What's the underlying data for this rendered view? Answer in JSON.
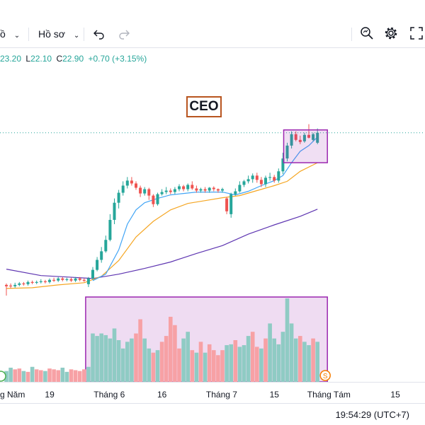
{
  "toolbar": {
    "indicators_label": "ồ",
    "profile_label": "Hồ sơ"
  },
  "ohlc": {
    "high": "23.20",
    "low_label": "L",
    "low": "22.10",
    "close_label": "C",
    "close": "22.90",
    "change": "+0.70 (+3.15%)"
  },
  "annotation": {
    "label": "CEO"
  },
  "clock": "19:54:29 (UTC+7)",
  "volume_marker": "S",
  "colors": {
    "up": "#26a69a",
    "down": "#ef5350",
    "ma_short": "#42a5f5",
    "ma_mid": "#f5a623",
    "ma_long": "#5e35b1",
    "highlight": "#9c27b0"
  },
  "chart_data": {
    "type": "candlestick",
    "symbol": "CEO",
    "x_tick_labels": [
      "g Năm",
      "19",
      "Tháng 6",
      "16",
      "Tháng 7",
      "15",
      "Tháng Tám",
      "15"
    ],
    "ylim": [
      10.3,
      25.3
    ],
    "candles": [
      [
        12.25,
        12.15,
        12.35,
        11.5
      ],
      [
        12.2,
        12.15,
        12.35,
        12.0
      ],
      [
        12.15,
        12.25,
        12.4,
        12.05
      ],
      [
        12.25,
        12.35,
        12.45,
        12.15
      ],
      [
        12.35,
        12.3,
        12.45,
        12.2
      ],
      [
        12.3,
        12.45,
        12.55,
        12.2
      ],
      [
        12.45,
        12.4,
        12.55,
        12.3
      ],
      [
        12.4,
        12.45,
        12.55,
        12.3
      ],
      [
        12.45,
        12.5,
        12.65,
        12.35
      ],
      [
        12.5,
        12.45,
        12.6,
        12.35
      ],
      [
        12.45,
        12.6,
        12.7,
        12.35
      ],
      [
        12.6,
        12.55,
        12.75,
        12.45
      ],
      [
        12.55,
        12.7,
        12.8,
        12.45
      ],
      [
        12.7,
        12.6,
        12.8,
        12.5
      ],
      [
        12.6,
        12.65,
        12.75,
        12.5
      ],
      [
        12.65,
        12.55,
        12.75,
        12.45
      ],
      [
        12.55,
        12.7,
        12.8,
        12.45
      ],
      [
        12.7,
        12.6,
        12.8,
        12.5
      ],
      [
        12.6,
        12.55,
        12.7,
        12.45
      ],
      [
        12.3,
        12.7,
        12.8,
        12.1
      ],
      [
        12.7,
        13.3,
        13.5,
        12.6
      ],
      [
        13.3,
        14.0,
        14.2,
        13.2
      ],
      [
        14.0,
        14.6,
        14.9,
        13.8
      ],
      [
        14.6,
        15.4,
        15.7,
        14.5
      ],
      [
        15.4,
        16.8,
        17.2,
        15.3
      ],
      [
        16.8,
        18.0,
        18.3,
        16.5
      ],
      [
        18.0,
        18.7,
        18.9,
        17.6
      ],
      [
        18.7,
        19.2,
        19.5,
        18.5
      ],
      [
        19.2,
        19.55,
        19.8,
        19.0
      ],
      [
        19.55,
        19.35,
        19.8,
        19.2
      ],
      [
        19.35,
        19.05,
        19.5,
        18.9
      ],
      [
        19.05,
        18.65,
        19.2,
        18.4
      ],
      [
        18.65,
        18.95,
        19.1,
        18.5
      ],
      [
        18.95,
        18.5,
        19.05,
        18.2
      ],
      [
        18.5,
        17.9,
        18.6,
        17.7
      ],
      [
        17.9,
        18.6,
        18.7,
        17.8
      ],
      [
        18.6,
        18.75,
        18.95,
        18.5
      ],
      [
        18.75,
        18.85,
        19.1,
        18.6
      ],
      [
        18.85,
        18.75,
        19.0,
        18.6
      ],
      [
        18.75,
        18.95,
        19.1,
        18.6
      ],
      [
        18.95,
        19.15,
        19.3,
        18.8
      ],
      [
        19.15,
        18.95,
        19.25,
        18.8
      ],
      [
        18.95,
        19.25,
        19.35,
        18.8
      ],
      [
        19.25,
        19.0,
        19.5,
        18.9
      ],
      [
        19.0,
        18.85,
        19.2,
        18.7
      ],
      [
        18.85,
        18.95,
        19.05,
        18.7
      ],
      [
        18.95,
        18.85,
        19.1,
        18.7
      ],
      [
        18.85,
        19.05,
        19.1,
        18.7
      ],
      [
        19.05,
        18.95,
        19.15,
        18.8
      ],
      [
        18.95,
        18.85,
        19.0,
        18.7
      ],
      [
        18.85,
        18.95,
        19.05,
        18.7
      ],
      [
        18.3,
        17.4,
        18.4,
        17.2
      ],
      [
        17.2,
        18.6,
        18.7,
        16.95
      ],
      [
        18.6,
        18.8,
        19.0,
        18.5
      ],
      [
        18.8,
        19.25,
        19.5,
        18.7
      ],
      [
        19.25,
        19.5,
        19.6,
        19.1
      ],
      [
        19.5,
        19.65,
        19.9,
        19.35
      ],
      [
        19.65,
        19.9,
        20.05,
        19.4
      ],
      [
        19.9,
        19.6,
        20.1,
        19.4
      ],
      [
        19.6,
        19.3,
        19.8,
        19.1
      ],
      [
        19.3,
        19.75,
        19.9,
        19.1
      ],
      [
        19.75,
        19.8,
        20.1,
        19.55
      ],
      [
        19.8,
        19.55,
        19.95,
        19.4
      ],
      [
        19.55,
        20.2,
        20.4,
        19.4
      ],
      [
        20.2,
        21.1,
        21.5,
        20.0
      ],
      [
        21.1,
        22.0,
        22.2,
        20.9
      ],
      [
        22.0,
        22.8,
        23.0,
        21.8
      ],
      [
        22.8,
        22.4,
        23.0,
        22.3
      ],
      [
        22.4,
        22.25,
        22.7,
        22.1
      ],
      [
        22.3,
        22.75,
        22.9,
        22.2
      ],
      [
        22.75,
        22.55,
        23.5,
        22.5
      ],
      [
        22.4,
        22.8,
        22.9,
        22.3
      ],
      [
        22.2,
        22.9,
        23.2,
        22.1
      ]
    ],
    "volume": [
      [
        13,
        "up"
      ],
      [
        17,
        "up"
      ],
      [
        15,
        "down"
      ],
      [
        16,
        "down"
      ],
      [
        13,
        "up"
      ],
      [
        12,
        "down"
      ],
      [
        18,
        "up"
      ],
      [
        15,
        "down"
      ],
      [
        14,
        "down"
      ],
      [
        13,
        "up"
      ],
      [
        16,
        "down"
      ],
      [
        15,
        "down"
      ],
      [
        14,
        "down"
      ],
      [
        17,
        "up"
      ],
      [
        12,
        "up"
      ],
      [
        15,
        "down"
      ],
      [
        14,
        "down"
      ],
      [
        13,
        "down"
      ],
      [
        15,
        "down"
      ],
      [
        18,
        "up"
      ],
      [
        58,
        "up"
      ],
      [
        55,
        "up"
      ],
      [
        58,
        "up"
      ],
      [
        56,
        "up"
      ],
      [
        52,
        "up"
      ],
      [
        64,
        "up"
      ],
      [
        50,
        "up"
      ],
      [
        40,
        "up"
      ],
      [
        48,
        "up"
      ],
      [
        52,
        "up"
      ],
      [
        58,
        "down"
      ],
      [
        75,
        "down"
      ],
      [
        52,
        "up"
      ],
      [
        40,
        "up"
      ],
      [
        35,
        "down"
      ],
      [
        38,
        "up"
      ],
      [
        48,
        "down"
      ],
      [
        55,
        "down"
      ],
      [
        78,
        "down"
      ],
      [
        68,
        "down"
      ],
      [
        40,
        "down"
      ],
      [
        52,
        "up"
      ],
      [
        60,
        "up"
      ],
      [
        38,
        "down"
      ],
      [
        35,
        "up"
      ],
      [
        48,
        "down"
      ],
      [
        35,
        "up"
      ],
      [
        45,
        "down"
      ],
      [
        38,
        "down"
      ],
      [
        32,
        "down"
      ],
      [
        38,
        "down"
      ],
      [
        44,
        "up"
      ],
      [
        45,
        "up"
      ],
      [
        50,
        "down"
      ],
      [
        42,
        "up"
      ],
      [
        44,
        "up"
      ],
      [
        55,
        "up"
      ],
      [
        60,
        "down"
      ],
      [
        42,
        "down"
      ],
      [
        40,
        "up"
      ],
      [
        52,
        "down"
      ],
      [
        70,
        "up"
      ],
      [
        52,
        "up"
      ],
      [
        45,
        "up"
      ],
      [
        60,
        "up"
      ],
      [
        100,
        "up"
      ],
      [
        70,
        "up"
      ],
      [
        52,
        "up"
      ],
      [
        55,
        "down"
      ],
      [
        48,
        "up"
      ],
      [
        44,
        "up"
      ],
      [
        52,
        "down"
      ],
      [
        48,
        "up"
      ]
    ],
    "ma_short": [
      [
        20,
        12.55
      ],
      [
        23,
        13.0
      ],
      [
        26,
        14.7
      ],
      [
        28,
        16.5
      ],
      [
        30,
        17.5
      ],
      [
        32,
        18.0
      ],
      [
        35,
        18.3
      ],
      [
        38,
        18.55
      ],
      [
        41,
        18.65
      ],
      [
        44,
        18.75
      ],
      [
        47,
        18.75
      ],
      [
        50,
        18.75
      ],
      [
        53,
        18.55
      ],
      [
        56,
        18.8
      ],
      [
        59,
        19.2
      ],
      [
        62,
        19.55
      ],
      [
        64,
        19.9
      ],
      [
        66,
        20.8
      ],
      [
        68,
        21.6
      ],
      [
        70,
        22.0
      ],
      [
        72,
        22.6
      ]
    ],
    "ma_mid": [
      [
        0,
        12.0
      ],
      [
        6,
        12.05
      ],
      [
        12,
        12.25
      ],
      [
        18,
        12.4
      ],
      [
        22,
        12.85
      ],
      [
        26,
        13.95
      ],
      [
        30,
        15.6
      ],
      [
        34,
        16.7
      ],
      [
        38,
        17.5
      ],
      [
        42,
        17.95
      ],
      [
        46,
        18.15
      ],
      [
        50,
        18.35
      ],
      [
        54,
        18.5
      ],
      [
        58,
        18.85
      ],
      [
        62,
        19.2
      ],
      [
        65,
        19.5
      ],
      [
        68,
        20.2
      ],
      [
        72,
        20.8
      ]
    ],
    "ma_long": [
      [
        0,
        13.35
      ],
      [
        8,
        12.9
      ],
      [
        14,
        12.8
      ],
      [
        20,
        12.7
      ],
      [
        26,
        13.0
      ],
      [
        32,
        13.4
      ],
      [
        38,
        13.85
      ],
      [
        44,
        14.45
      ],
      [
        50,
        15.0
      ],
      [
        56,
        15.8
      ],
      [
        62,
        16.45
      ],
      [
        68,
        17.05
      ],
      [
        72,
        17.55
      ]
    ],
    "reference_line": 22.9
  }
}
